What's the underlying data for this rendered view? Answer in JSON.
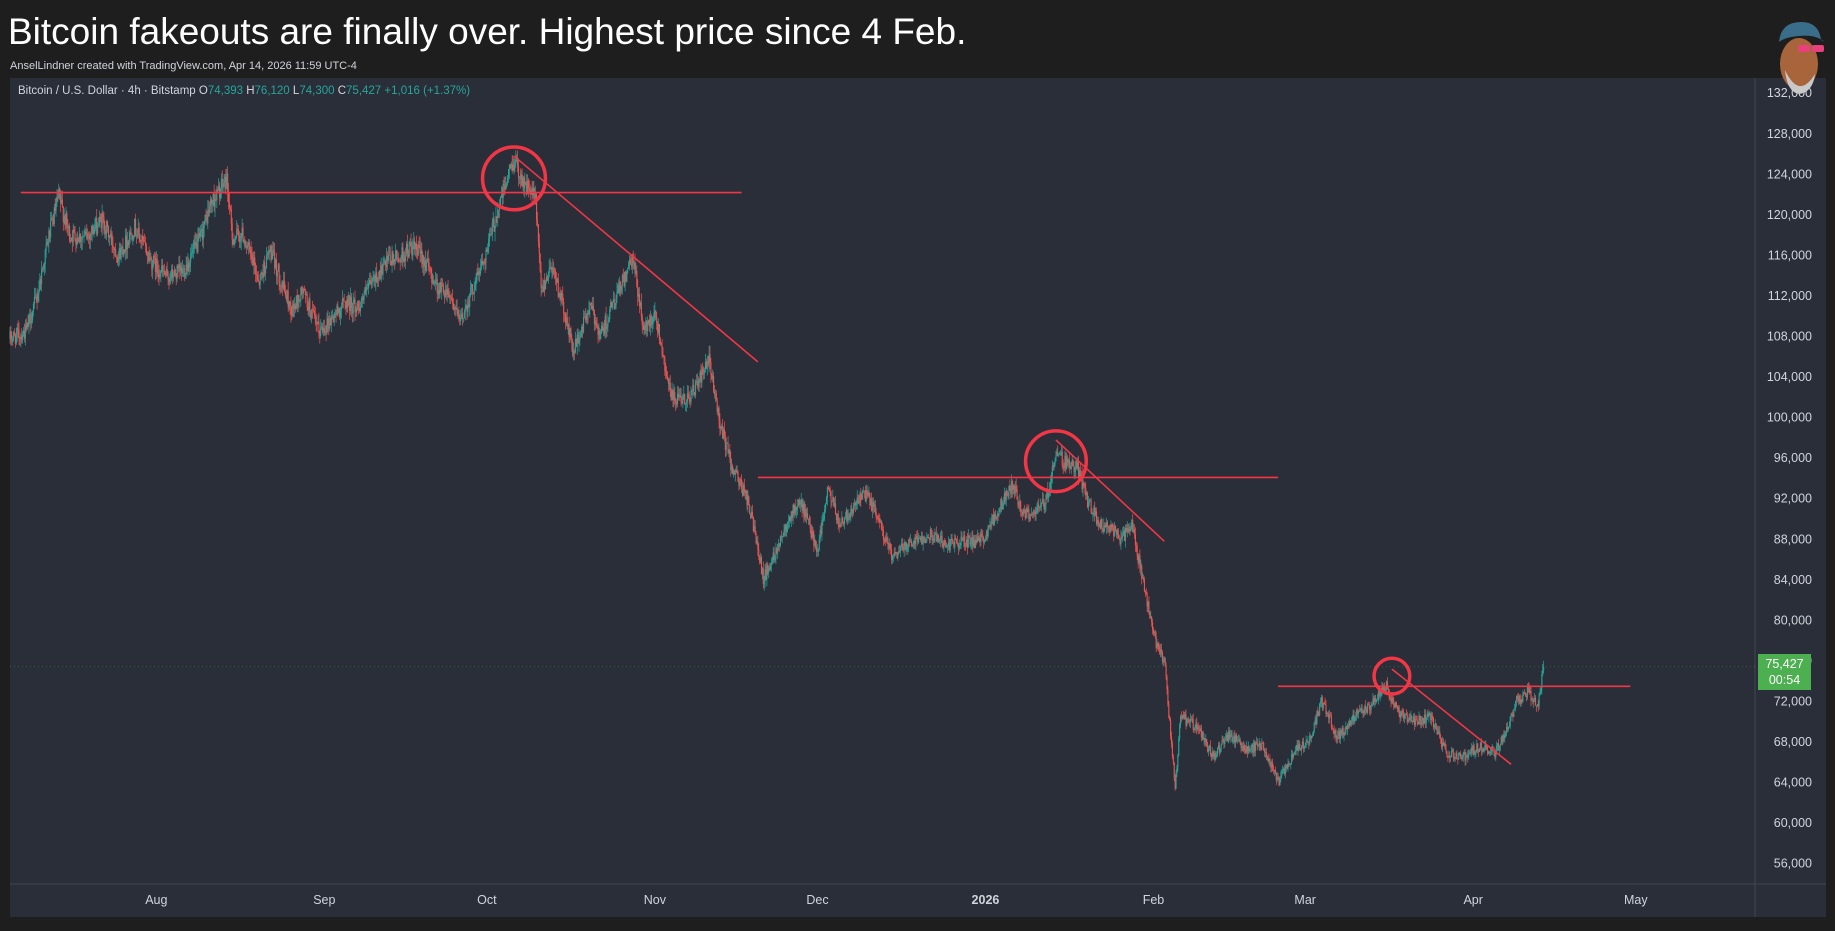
{
  "header": {
    "title": "Bitcoin fakeouts are finally over. Highest price since 4 Feb.",
    "subtitle": "AnselLindner created with TradingView.com, Apr 14, 2026 11:59 UTC-4"
  },
  "symbol": {
    "name": "Bitcoin / U.S. Dollar · 4h · Bitstamp",
    "open_label": "O",
    "open": "74,393",
    "high_label": "H",
    "high": "76,120",
    "low_label": "L",
    "low": "74,300",
    "close_label": "C",
    "close": "75,427",
    "change": "+1,016 (+1.37%)"
  },
  "price_badge": {
    "price": "75,427",
    "countdown": "00:54",
    "color": "#4caf50"
  },
  "colors": {
    "background": "#2a2e39",
    "up": "#26a69a",
    "down": "#ef5350",
    "annotation": "#f23645",
    "axis_text": "#d1d4dc"
  },
  "chart_data": {
    "type": "candlestick",
    "timeframe": "4h",
    "y_ticks": [
      56000,
      60000,
      64000,
      68000,
      72000,
      76000,
      80000,
      84000,
      88000,
      92000,
      96000,
      100000,
      104000,
      108000,
      112000,
      116000,
      120000,
      124000,
      128000,
      132000
    ],
    "y_tick_labels": [
      "56,000",
      "60,000",
      "64,000",
      "68,000",
      "72,000",
      "76,000",
      "80,000",
      "84,000",
      "88,000",
      "92,000",
      "96,000",
      "100,000",
      "104,000",
      "108,000",
      "112,000",
      "116,000",
      "120,000",
      "124,000",
      "128,000",
      "132,000"
    ],
    "ylim": [
      54000,
      133500
    ],
    "x_labels": [
      {
        "label": "Aug",
        "date": "2025-08-01"
      },
      {
        "label": "Sep",
        "date": "2025-09-01"
      },
      {
        "label": "Oct",
        "date": "2025-10-01"
      },
      {
        "label": "Nov",
        "date": "2025-11-01"
      },
      {
        "label": "Dec",
        "date": "2025-12-01"
      },
      {
        "label": "2026",
        "date": "2026-01-01",
        "bold": true
      },
      {
        "label": "Feb",
        "date": "2026-02-01"
      },
      {
        "label": "Mar",
        "date": "2026-03-01"
      },
      {
        "label": "Apr",
        "date": "2026-04-01"
      },
      {
        "label": "May",
        "date": "2026-05-01"
      }
    ],
    "xlim": [
      "2025-07-05",
      "2026-05-23"
    ],
    "price_path": [
      [
        "2025-07-05",
        107800
      ],
      [
        "2025-07-08",
        108500
      ],
      [
        "2025-07-10",
        112000
      ],
      [
        "2025-07-12",
        117500
      ],
      [
        "2025-07-14",
        121800
      ],
      [
        "2025-07-16",
        118000
      ],
      [
        "2025-07-19",
        117800
      ],
      [
        "2025-07-22",
        119500
      ],
      [
        "2025-07-25",
        116000
      ],
      [
        "2025-07-28",
        118800
      ],
      [
        "2025-07-31",
        115500
      ],
      [
        "2025-08-03",
        113800
      ],
      [
        "2025-08-06",
        114500
      ],
      [
        "2025-08-09",
        117500
      ],
      [
        "2025-08-11",
        121000
      ],
      [
        "2025-08-14",
        123500
      ],
      [
        "2025-08-15",
        117800
      ],
      [
        "2025-08-17",
        118000
      ],
      [
        "2025-08-20",
        113500
      ],
      [
        "2025-08-22",
        116500
      ],
      [
        "2025-08-24",
        113500
      ],
      [
        "2025-08-26",
        110500
      ],
      [
        "2025-08-28",
        112500
      ],
      [
        "2025-08-31",
        108500
      ],
      [
        "2025-09-02",
        109500
      ],
      [
        "2025-09-05",
        111500
      ],
      [
        "2025-09-07",
        110800
      ],
      [
        "2025-09-10",
        113500
      ],
      [
        "2025-09-13",
        115500
      ],
      [
        "2025-09-15",
        115800
      ],
      [
        "2025-09-17",
        116800
      ],
      [
        "2025-09-19",
        116000
      ],
      [
        "2025-09-22",
        112800
      ],
      [
        "2025-09-24",
        112500
      ],
      [
        "2025-09-26",
        109300
      ],
      [
        "2025-09-28",
        112200
      ],
      [
        "2025-10-01",
        116500
      ],
      [
        "2025-10-03",
        120500
      ],
      [
        "2025-10-05",
        124000
      ],
      [
        "2025-10-06",
        125500
      ],
      [
        "2025-10-08",
        123000
      ],
      [
        "2025-10-10",
        121500
      ],
      [
        "2025-10-11",
        112500
      ],
      [
        "2025-10-13",
        115200
      ],
      [
        "2025-10-15",
        111000
      ],
      [
        "2025-10-17",
        106500
      ],
      [
        "2025-10-20",
        111000
      ],
      [
        "2025-10-22",
        108200
      ],
      [
        "2025-10-24",
        110800
      ],
      [
        "2025-10-27",
        114500
      ],
      [
        "2025-10-28",
        115500
      ],
      [
        "2025-10-30",
        108500
      ],
      [
        "2025-11-01",
        110500
      ],
      [
        "2025-11-04",
        102000
      ],
      [
        "2025-11-06",
        101500
      ],
      [
        "2025-11-08",
        102500
      ],
      [
        "2025-11-11",
        105500
      ],
      [
        "2025-11-13",
        99500
      ],
      [
        "2025-11-15",
        95500
      ],
      [
        "2025-11-18",
        92000
      ],
      [
        "2025-11-20",
        87500
      ],
      [
        "2025-11-21",
        84000
      ],
      [
        "2025-11-23",
        86500
      ],
      [
        "2025-11-26",
        90500
      ],
      [
        "2025-11-28",
        91500
      ],
      [
        "2025-12-01",
        87000
      ],
      [
        "2025-12-03",
        93000
      ],
      [
        "2025-12-05",
        89500
      ],
      [
        "2025-12-08",
        91500
      ],
      [
        "2025-12-10",
        92500
      ],
      [
        "2025-12-12",
        90200
      ],
      [
        "2025-12-15",
        86000
      ],
      [
        "2025-12-17",
        87500
      ],
      [
        "2025-12-19",
        88000
      ],
      [
        "2025-12-22",
        88500
      ],
      [
        "2025-12-25",
        87500
      ],
      [
        "2025-12-28",
        87800
      ],
      [
        "2025-12-31",
        87700
      ],
      [
        "2026-01-02",
        89500
      ],
      [
        "2026-01-04",
        91500
      ],
      [
        "2026-01-06",
        93500
      ],
      [
        "2026-01-08",
        90500
      ],
      [
        "2026-01-10",
        90700
      ],
      [
        "2026-01-12",
        91500
      ],
      [
        "2026-01-14",
        96500
      ],
      [
        "2026-01-16",
        95500
      ],
      [
        "2026-01-18",
        95000
      ],
      [
        "2026-01-20",
        91500
      ],
      [
        "2026-01-22",
        89500
      ],
      [
        "2026-01-24",
        89200
      ],
      [
        "2026-01-26",
        88000
      ],
      [
        "2026-01-28",
        89500
      ],
      [
        "2026-01-30",
        84000
      ],
      [
        "2026-02-01",
        78500
      ],
      [
        "2026-02-03",
        76000
      ],
      [
        "2026-02-05",
        63500
      ],
      [
        "2026-02-06",
        70500
      ],
      [
        "2026-02-09",
        69500
      ],
      [
        "2026-02-12",
        66500
      ],
      [
        "2026-02-15",
        68800
      ],
      [
        "2026-02-18",
        67200
      ],
      [
        "2026-02-21",
        67800
      ],
      [
        "2026-02-24",
        64000
      ],
      [
        "2026-02-27",
        67000
      ],
      [
        "2026-03-02",
        68500
      ],
      [
        "2026-03-04",
        72000
      ],
      [
        "2026-03-07",
        68500
      ],
      [
        "2026-03-10",
        70500
      ],
      [
        "2026-03-13",
        71500
      ],
      [
        "2026-03-16",
        73500
      ],
      [
        "2026-03-18",
        71000
      ],
      [
        "2026-03-21",
        70000
      ],
      [
        "2026-03-24",
        70500
      ],
      [
        "2026-03-27",
        67000
      ],
      [
        "2026-03-30",
        66500
      ],
      [
        "2026-04-02",
        67500
      ],
      [
        "2026-04-05",
        67000
      ],
      [
        "2026-04-07",
        69000
      ],
      [
        "2026-04-09",
        72000
      ],
      [
        "2026-04-11",
        73000
      ],
      [
        "2026-04-13",
        71500
      ],
      [
        "2026-04-14",
        75427
      ]
    ],
    "last_price": 75427,
    "annotations": {
      "horizontal_lines": [
        {
          "from": "2025-07-07",
          "to": "2025-11-17",
          "price": 122200
        },
        {
          "from": "2025-11-20",
          "to": "2026-02-24",
          "price": 94100
        },
        {
          "from": "2026-02-24",
          "to": "2026-04-30",
          "price": 73500
        }
      ],
      "trend_lines": [
        {
          "from": [
            "2025-10-06",
            125800
          ],
          "to": [
            "2025-11-20",
            105500
          ]
        },
        {
          "from": [
            "2026-01-14",
            97800
          ],
          "to": [
            "2026-02-03",
            87800
          ]
        },
        {
          "from": [
            "2026-03-17",
            75200
          ],
          "to": [
            "2026-04-08",
            65800
          ]
        }
      ],
      "circles": [
        {
          "date": "2025-10-06",
          "price": 123600,
          "radius_days": 5.8
        },
        {
          "date": "2026-01-14",
          "price": 95700,
          "radius_days": 5.6
        },
        {
          "date": "2026-03-17",
          "price": 74500,
          "radius_days": 3.3
        }
      ]
    }
  }
}
